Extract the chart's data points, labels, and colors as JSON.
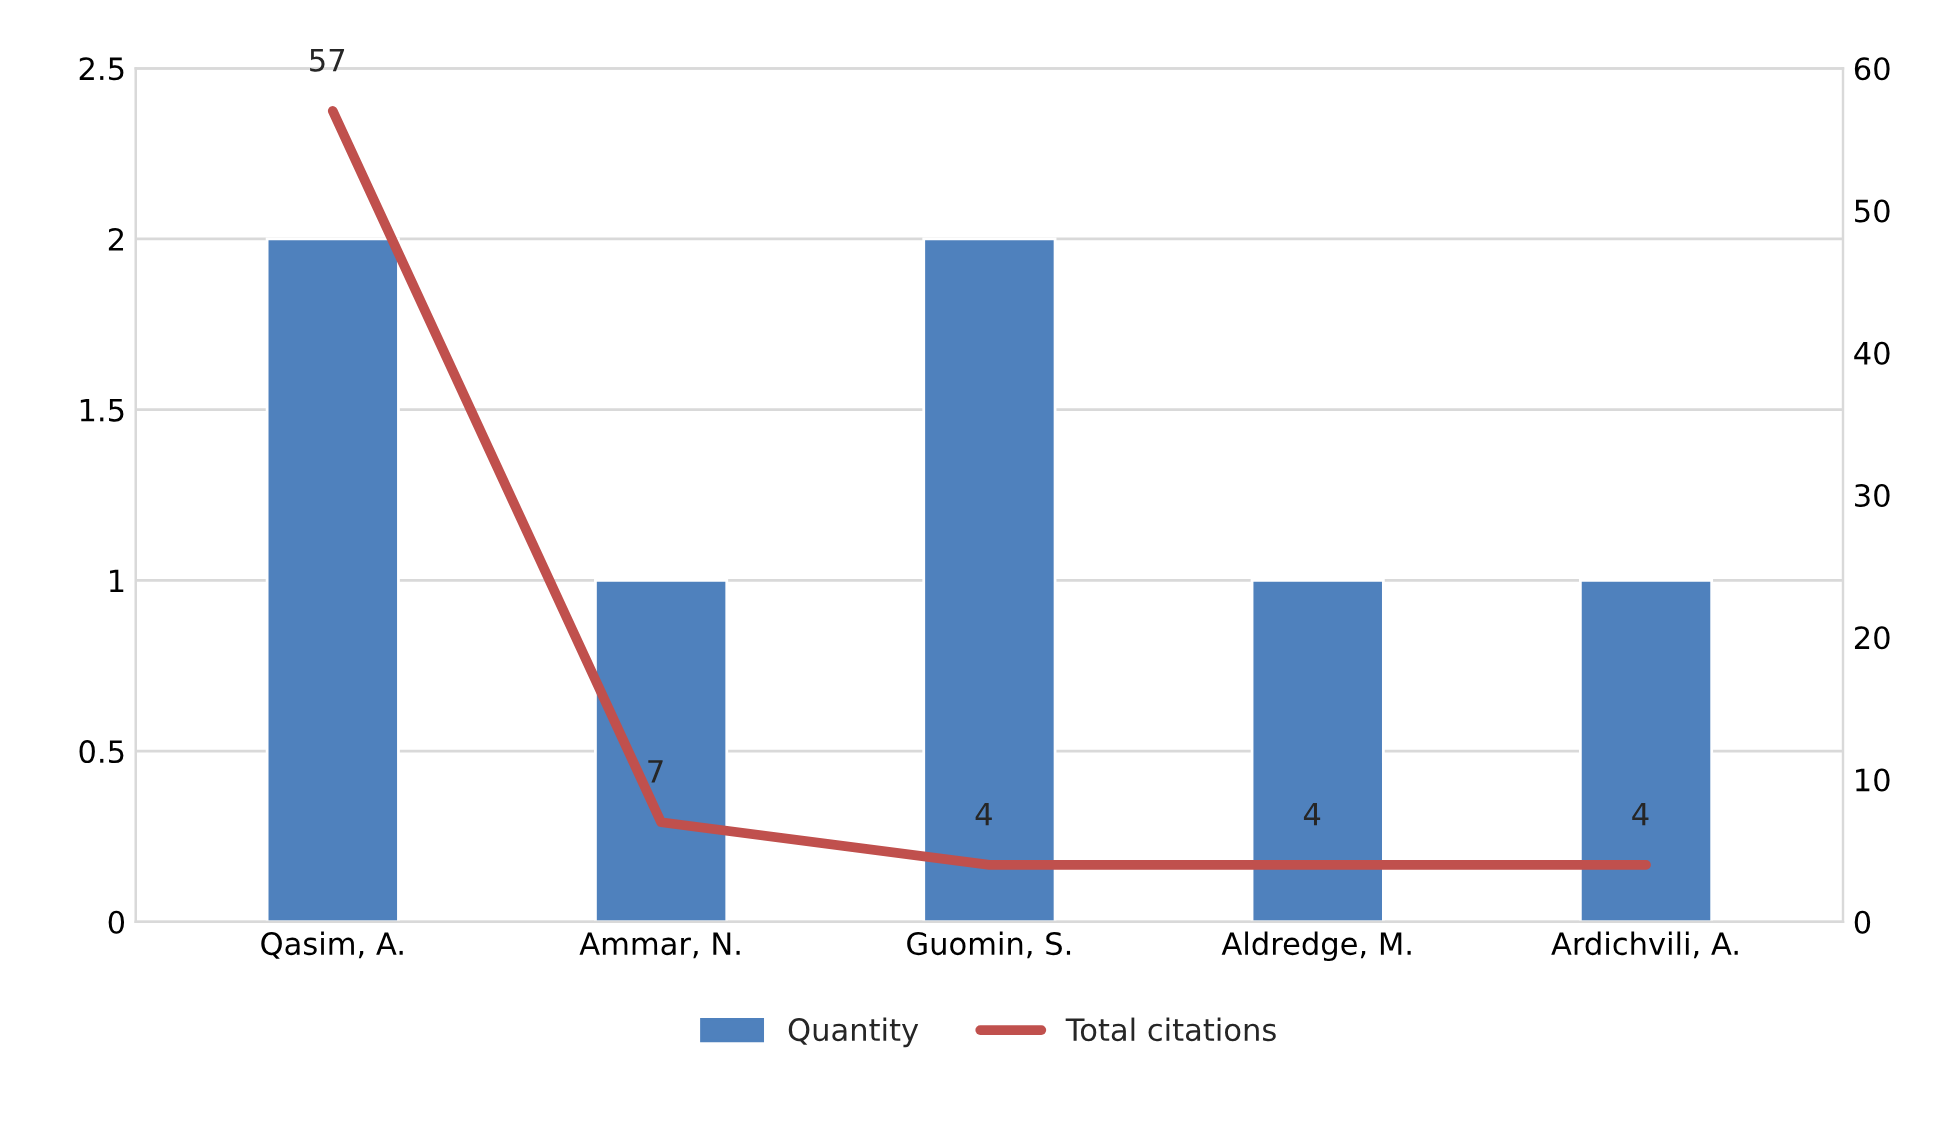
{
  "chart_data": {
    "type": "bar",
    "categories": [
      "Qasim, A.",
      "Ammar, N.",
      "Guomin, S.",
      "Aldredge, M.",
      "Ardichvili, A."
    ],
    "series": [
      {
        "name": "Quantity",
        "color": "#4f81bd",
        "values": [
          2,
          1,
          2,
          1,
          1
        ]
      },
      {
        "name": "Total citations",
        "type": "line",
        "axis": "y2",
        "color": "#c0504d",
        "values": [
          57,
          7,
          4,
          4,
          4
        ],
        "value_labels": [
          "57",
          "7",
          "4",
          "4",
          "4"
        ]
      }
    ],
    "ylim": [
      0,
      2.5
    ],
    "yticks": [
      0,
      0.5,
      1,
      1.5,
      2,
      2.5
    ],
    "y2lim": [
      0,
      60
    ],
    "y2ticks": [
      0,
      10,
      20,
      30,
      40,
      50,
      60
    ],
    "grid": "y",
    "legend": "bottom",
    "marker": "none",
    "line_style": "solid"
  }
}
